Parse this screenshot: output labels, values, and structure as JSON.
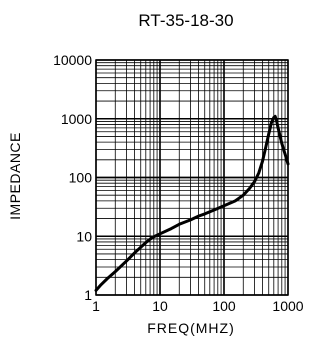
{
  "chart_data": {
    "type": "line",
    "title": "RT-35-18-30",
    "xlabel": "FREQ(MHZ)",
    "ylabel": "IMPEDANCE",
    "x_scale": "log",
    "y_scale": "log",
    "xlim": [
      1,
      1000
    ],
    "ylim": [
      1,
      10000
    ],
    "x_ticks": [
      {
        "value": 1,
        "label": "1"
      },
      {
        "value": 10,
        "label": "10"
      },
      {
        "value": 100,
        "label": "100"
      },
      {
        "value": 1000,
        "label": "1000"
      }
    ],
    "y_ticks": [
      {
        "value": 1,
        "label": "1"
      },
      {
        "value": 10,
        "label": "10"
      },
      {
        "value": 100,
        "label": "100"
      },
      {
        "value": 1000,
        "label": "1000"
      },
      {
        "value": 10000,
        "label": "10000"
      }
    ],
    "grid": true,
    "series": [
      {
        "color": "#000000",
        "points": [
          [
            1,
            1.2
          ],
          [
            1.2,
            1.5
          ],
          [
            1.5,
            1.9
          ],
          [
            2,
            2.5
          ],
          [
            3,
            3.8
          ],
          [
            4,
            5.2
          ],
          [
            5,
            6.5
          ],
          [
            6,
            7.8
          ],
          [
            7,
            8.9
          ],
          [
            8,
            9.8
          ],
          [
            10,
            11
          ],
          [
            15,
            13.5
          ],
          [
            20,
            16
          ],
          [
            30,
            19
          ],
          [
            40,
            22
          ],
          [
            50,
            24
          ],
          [
            70,
            28
          ],
          [
            100,
            33
          ],
          [
            150,
            40
          ],
          [
            200,
            50
          ],
          [
            250,
            65
          ],
          [
            300,
            85
          ],
          [
            350,
            120
          ],
          [
            400,
            190
          ],
          [
            450,
            330
          ],
          [
            500,
            550
          ],
          [
            550,
            850
          ],
          [
            600,
            1050
          ],
          [
            630,
            1100
          ],
          [
            660,
            950
          ],
          [
            700,
            700
          ],
          [
            800,
            380
          ],
          [
            900,
            250
          ],
          [
            1000,
            170
          ]
        ]
      }
    ]
  }
}
